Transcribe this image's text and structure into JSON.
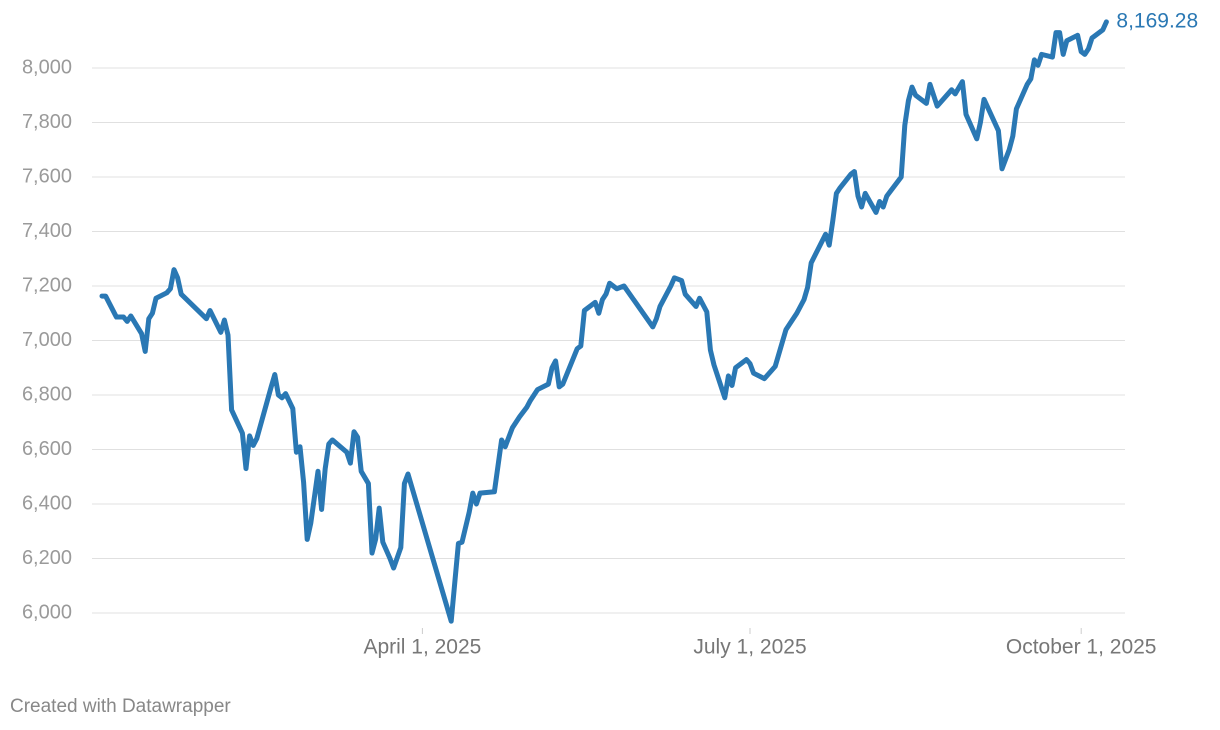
{
  "chart_data": {
    "type": "line",
    "x": [
      "2025-01-02",
      "2025-01-03",
      "2025-01-06",
      "2025-01-08",
      "2025-01-09",
      "2025-01-10",
      "2025-01-13",
      "2025-01-14",
      "2025-01-15",
      "2025-01-16",
      "2025-01-17",
      "2025-01-20",
      "2025-01-21",
      "2025-01-22",
      "2025-01-23",
      "2025-01-24",
      "2025-01-31",
      "2025-02-01",
      "2025-02-04",
      "2025-02-05",
      "2025-02-06",
      "2025-02-07",
      "2025-02-10",
      "2025-02-11",
      "2025-02-12",
      "2025-02-13",
      "2025-02-14",
      "2025-02-18",
      "2025-02-19",
      "2025-02-20",
      "2025-02-21",
      "2025-02-22",
      "2025-02-24",
      "2025-02-25",
      "2025-02-26",
      "2025-02-27",
      "2025-02-28",
      "2025-03-01",
      "2025-03-03",
      "2025-03-04",
      "2025-03-05",
      "2025-03-06",
      "2025-03-07",
      "2025-03-11",
      "2025-03-12",
      "2025-03-13",
      "2025-03-14",
      "2025-03-15",
      "2025-03-17",
      "2025-03-18",
      "2025-03-19",
      "2025-03-20",
      "2025-03-21",
      "2025-03-23",
      "2025-03-24",
      "2025-03-26",
      "2025-03-27",
      "2025-03-28",
      "2025-04-09",
      "2025-04-11",
      "2025-04-12",
      "2025-04-14",
      "2025-04-15",
      "2025-04-16",
      "2025-04-17",
      "2025-04-21",
      "2025-04-23",
      "2025-04-24",
      "2025-04-26",
      "2025-04-27",
      "2025-04-28",
      "2025-04-30",
      "2025-05-01",
      "2025-05-03",
      "2025-05-06",
      "2025-05-07",
      "2025-05-08",
      "2025-05-09",
      "2025-05-10",
      "2025-05-14",
      "2025-05-15",
      "2025-05-16",
      "2025-05-19",
      "2025-05-20",
      "2025-05-21",
      "2025-05-22",
      "2025-05-23",
      "2025-05-25",
      "2025-05-27",
      "2025-06-04",
      "2025-06-05",
      "2025-06-06",
      "2025-06-09",
      "2025-06-10",
      "2025-06-12",
      "2025-06-13",
      "2025-06-16",
      "2025-06-17",
      "2025-06-19",
      "2025-06-20",
      "2025-06-21",
      "2025-06-23",
      "2025-06-24",
      "2025-06-25",
      "2025-06-26",
      "2025-06-27",
      "2025-06-30",
      "2025-07-01",
      "2025-07-02",
      "2025-07-05",
      "2025-07-07",
      "2025-07-08",
      "2025-07-09",
      "2025-07-11",
      "2025-07-12",
      "2025-07-14",
      "2025-07-16",
      "2025-07-17",
      "2025-07-18",
      "2025-07-22",
      "2025-07-23",
      "2025-07-24",
      "2025-07-25",
      "2025-07-26",
      "2025-07-29",
      "2025-07-30",
      "2025-07-31",
      "2025-08-01",
      "2025-08-02",
      "2025-08-05",
      "2025-08-06",
      "2025-08-07",
      "2025-08-08",
      "2025-08-12",
      "2025-08-13",
      "2025-08-14",
      "2025-08-15",
      "2025-08-16",
      "2025-08-19",
      "2025-08-20",
      "2025-08-22",
      "2025-08-26",
      "2025-08-27",
      "2025-08-29",
      "2025-08-30",
      "2025-09-02",
      "2025-09-03",
      "2025-09-04",
      "2025-09-08",
      "2025-09-09",
      "2025-09-11",
      "2025-09-12",
      "2025-09-13",
      "2025-09-16",
      "2025-09-17",
      "2025-09-18",
      "2025-09-19",
      "2025-09-20",
      "2025-09-23",
      "2025-09-24",
      "2025-09-25",
      "2025-09-26",
      "2025-09-27",
      "2025-09-30",
      "2025-10-01",
      "2025-10-02",
      "2025-10-03",
      "2025-10-04",
      "2025-10-07",
      "2025-10-08"
    ],
    "values": [
      7163,
      7163,
      7086,
      7086,
      7070,
      7090,
      7025,
      6960,
      7080,
      7100,
      7155,
      7175,
      7190,
      7260,
      7230,
      7170,
      7080,
      7110,
      7030,
      7075,
      7020,
      6745,
      6660,
      6530,
      6650,
      6615,
      6640,
      6830,
      6875,
      6800,
      6790,
      6805,
      6750,
      6590,
      6610,
      6480,
      6270,
      6330,
      6520,
      6380,
      6530,
      6620,
      6635,
      6590,
      6550,
      6665,
      6645,
      6520,
      6475,
      6220,
      6270,
      6385,
      6260,
      6200,
      6165,
      6240,
      6475,
      6510,
      5970,
      6255,
      6260,
      6370,
      6440,
      6400,
      6440,
      6445,
      6635,
      6610,
      6680,
      6700,
      6720,
      6755,
      6780,
      6820,
      6840,
      6900,
      6925,
      6830,
      6840,
      6970,
      6980,
      7110,
      7140,
      7100,
      7150,
      7170,
      7210,
      7190,
      7200,
      7050,
      7080,
      7125,
      7200,
      7230,
      7220,
      7170,
      7125,
      7155,
      7105,
      6965,
      6910,
      6830,
      6790,
      6870,
      6835,
      6900,
      6930,
      6915,
      6880,
      6860,
      6890,
      6905,
      6950,
      7040,
      7060,
      7100,
      7150,
      7195,
      7285,
      7390,
      7350,
      7440,
      7540,
      7560,
      7610,
      7620,
      7530,
      7490,
      7540,
      7470,
      7510,
      7490,
      7530,
      7600,
      7790,
      7880,
      7930,
      7900,
      7870,
      7940,
      7860,
      7920,
      7905,
      7950,
      7830,
      7740,
      7800,
      7885,
      7770,
      7630,
      7700,
      7750,
      7850,
      7940,
      7960,
      8030,
      8010,
      8050,
      8040,
      8130,
      8130,
      8050,
      8100,
      8120,
      8060,
      8050,
      8070,
      8110,
      8140,
      8169.28
    ],
    "value_labels": {
      "169": "8,169.28"
    },
    "color": "#2a78b4",
    "xlim": [
      "2025-01-01",
      "2025-10-09"
    ],
    "xticks": [
      {
        "value": "2025-04-01",
        "label": "April 1, 2025"
      },
      {
        "value": "2025-07-01",
        "label": "July 1, 2025"
      },
      {
        "value": "2025-10-01",
        "label": "October 1, 2025"
      }
    ],
    "ylim": [
      5900,
      8200
    ],
    "yticks": [
      {
        "value": 6000,
        "label": "6,000"
      },
      {
        "value": 6200,
        "label": "6,200"
      },
      {
        "value": 6400,
        "label": "6,400"
      },
      {
        "value": 6600,
        "label": "6,600"
      },
      {
        "value": 6800,
        "label": "6,800"
      },
      {
        "value": 7000,
        "label": "7,000"
      },
      {
        "value": 7200,
        "label": "7,200"
      },
      {
        "value": 7400,
        "label": "7,400"
      },
      {
        "value": 7600,
        "label": "7,600"
      },
      {
        "value": 7800,
        "label": "7,800"
      },
      {
        "value": 8000,
        "label": "8,000"
      }
    ],
    "grid": true,
    "footer": "Created with Datawrapper"
  }
}
